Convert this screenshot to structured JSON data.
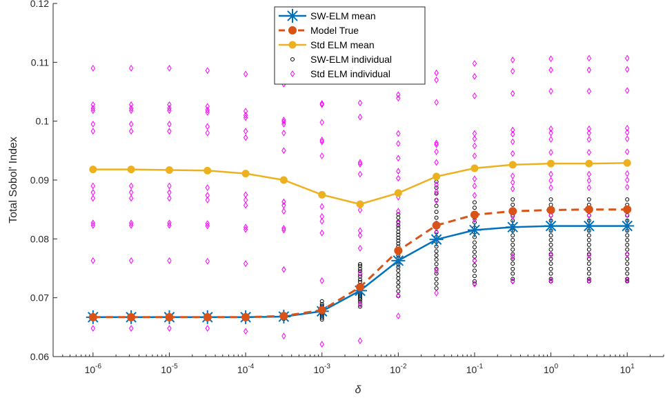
{
  "chart_data": {
    "type": "line",
    "title": "",
    "xlabel": "δ",
    "ylabel": "Total Sobol' Index",
    "xscale": "log",
    "xlim": [
      3e-07,
      30
    ],
    "ylim": [
      0.06,
      0.12
    ],
    "x_tick_exponents": [
      -6,
      -5,
      -4,
      -3,
      -2,
      -1,
      0,
      1
    ],
    "y_ticks": [
      0.06,
      0.07,
      0.08,
      0.09,
      0.1,
      0.11,
      0.12
    ],
    "y_tick_labels": [
      "0.06",
      "0.07",
      "0.08",
      "0.09",
      "0.1",
      "0.11",
      "0.12"
    ],
    "grid": false,
    "legend_position": "top-center",
    "x": [
      1e-06,
      3.16e-06,
      1e-05,
      3.16e-05,
      0.0001,
      0.000316,
      0.001,
      0.00316,
      0.01,
      0.0316,
      0.1,
      0.316,
      1,
      3.16,
      10
    ],
    "series": [
      {
        "name": "SW-ELM mean",
        "color": "#0072bd",
        "marker": "asterisk",
        "values": [
          0.0667,
          0.0667,
          0.0667,
          0.0667,
          0.0667,
          0.0668,
          0.0677,
          0.0712,
          0.0763,
          0.0799,
          0.0815,
          0.082,
          0.0822,
          0.0822,
          0.0822
        ]
      },
      {
        "name": "Model True",
        "color": "#d95319",
        "marker": "circle",
        "dashed": true,
        "values": [
          0.0667,
          0.0667,
          0.0667,
          0.0667,
          0.0667,
          0.0669,
          0.0679,
          0.0718,
          0.078,
          0.0823,
          0.0841,
          0.0847,
          0.0849,
          0.085,
          0.085
        ]
      },
      {
        "name": "Std ELM mean",
        "color": "#edb120",
        "marker": "circle",
        "values": [
          0.0918,
          0.0918,
          0.0917,
          0.0916,
          0.0911,
          0.09,
          0.0875,
          0.0859,
          0.0878,
          0.0906,
          0.092,
          0.0926,
          0.0928,
          0.0928,
          0.0929
        ]
      },
      {
        "name": "SW-ELM individual",
        "color": "#000000",
        "marker": "small-circle",
        "scatter": true,
        "points": [
          [
            [
              0.0667,
              0.0666,
              0.0668,
              0.0665,
              0.0669,
              0.0667,
              0.0666,
              0.0668
            ]
          ],
          [
            [
              0.0667,
              0.0666,
              0.0668,
              0.0665,
              0.0669,
              0.0667,
              0.0666,
              0.0668
            ]
          ],
          [
            [
              0.0667,
              0.0666,
              0.0668,
              0.0665,
              0.0669,
              0.0667,
              0.0666,
              0.0668
            ]
          ],
          [
            [
              0.0667,
              0.0666,
              0.0668,
              0.0665,
              0.0669,
              0.0667,
              0.0666,
              0.0668
            ]
          ],
          [
            [
              0.0667,
              0.0666,
              0.0668,
              0.0665,
              0.0669,
              0.0667,
              0.0666,
              0.0668
            ]
          ],
          [
            [
              0.0664,
              0.0666,
              0.0667,
              0.0668,
              0.0669,
              0.067,
              0.0671,
              0.0665,
              0.0672,
              0.0666
            ]
          ],
          [
            [
              0.0663,
              0.0666,
              0.0669,
              0.0672,
              0.0674,
              0.0676,
              0.0678,
              0.068,
              0.0683,
              0.0686,
              0.0689,
              0.0694
            ]
          ],
          [
            [
              0.0685,
              0.0689,
              0.0693,
              0.0697,
              0.07,
              0.0703,
              0.0706,
              0.0709,
              0.0712,
              0.0716,
              0.0719,
              0.0722,
              0.0727,
              0.0731,
              0.0736,
              0.074,
              0.0745,
              0.0749,
              0.0754,
              0.0757
            ]
          ],
          [
            [
              0.0703,
              0.0711,
              0.0719,
              0.0726,
              0.0733,
              0.0739,
              0.0746,
              0.0752,
              0.0757,
              0.0762,
              0.0767,
              0.0772,
              0.0777,
              0.0782,
              0.0787,
              0.0792,
              0.0797,
              0.0802,
              0.0807,
              0.0812,
              0.0818,
              0.0823,
              0.0829,
              0.0836,
              0.0842
            ]
          ],
          [
            [
              0.0716,
              0.0724,
              0.0732,
              0.0741,
              0.0749,
              0.0757,
              0.0765,
              0.0772,
              0.0779,
              0.0787,
              0.0795,
              0.0803,
              0.0811,
              0.0819,
              0.0827,
              0.0836,
              0.0846,
              0.0856,
              0.0866,
              0.0877,
              0.0887,
              0.0897
            ]
          ],
          [
            [
              0.0724,
              0.0728,
              0.0737,
              0.0746,
              0.0755,
              0.0763,
              0.077,
              0.0778,
              0.0786,
              0.0794,
              0.0803,
              0.0811,
              0.0819,
              0.0828,
              0.0836,
              0.0844,
              0.0853,
              0.0862,
              0.092
            ]
          ],
          [
            [
              0.0728,
              0.0732,
              0.0741,
              0.0749,
              0.0758,
              0.0766,
              0.0774,
              0.0782,
              0.079,
              0.0798,
              0.0806,
              0.0814,
              0.0822,
              0.0831,
              0.084,
              0.0849,
              0.0858,
              0.0867,
              0.0926
            ]
          ],
          [
            [
              0.0728,
              0.0732,
              0.0741,
              0.0749,
              0.0758,
              0.0766,
              0.0774,
              0.0782,
              0.079,
              0.0798,
              0.0806,
              0.0814,
              0.0822,
              0.0831,
              0.084,
              0.0849,
              0.0858,
              0.0867,
              0.0929
            ]
          ],
          [
            [
              0.0728,
              0.0732,
              0.0741,
              0.0749,
              0.0758,
              0.0766,
              0.0774,
              0.0782,
              0.079,
              0.0798,
              0.0806,
              0.0814,
              0.0822,
              0.0831,
              0.084,
              0.0849,
              0.0858,
              0.0867,
              0.093
            ]
          ],
          [
            [
              0.0728,
              0.0732,
              0.0741,
              0.0749,
              0.0758,
              0.0766,
              0.0774,
              0.0782,
              0.079,
              0.0798,
              0.0806,
              0.0814,
              0.0822,
              0.0831,
              0.084,
              0.0849,
              0.0858,
              0.0867,
              0.0932
            ]
          ]
        ]
      },
      {
        "name": "Std ELM individual",
        "color": "#ff00ff",
        "marker": "diamond",
        "scatter": true,
        "points": [
          [
            [
              0.0648,
              0.0763,
              0.0823,
              0.0827,
              0.0869,
              0.0879,
              0.089,
              0.0983,
              0.0995,
              0.1018,
              0.1022,
              0.1028,
              0.109
            ]
          ],
          [
            [
              0.0648,
              0.0763,
              0.0823,
              0.0827,
              0.0869,
              0.0879,
              0.089,
              0.0983,
              0.0995,
              0.1018,
              0.1022,
              0.1028,
              0.109
            ]
          ],
          [
            [
              0.0648,
              0.0763,
              0.0823,
              0.0827,
              0.0869,
              0.0879,
              0.089,
              0.0983,
              0.0995,
              0.1018,
              0.1022,
              0.1028,
              0.109
            ]
          ],
          [
            [
              0.0648,
              0.0762,
              0.0822,
              0.0826,
              0.0866,
              0.0874,
              0.0887,
              0.098,
              0.0991,
              0.1015,
              0.1019,
              0.1025,
              0.1086
            ]
          ],
          [
            [
              0.0643,
              0.0758,
              0.0816,
              0.082,
              0.0857,
              0.0866,
              0.0875,
              0.0972,
              0.0983,
              0.1006,
              0.101,
              0.1017,
              0.108
            ]
          ],
          [
            [
              0.0635,
              0.0748,
              0.0815,
              0.0818,
              0.0847,
              0.0857,
              0.0863,
              0.095,
              0.098,
              0.0995,
              0.0999,
              0.1002,
              0.1063
            ]
          ],
          [
            [
              0.0621,
              0.0729,
              0.081,
              0.083,
              0.0838,
              0.0855,
              0.0941,
              0.0965,
              0.0968,
              0.0998,
              0.1028,
              0.103
            ]
          ],
          [
            [
              0.0627,
              0.0689,
              0.0741,
              0.0784,
              0.0806,
              0.0814,
              0.0849,
              0.091,
              0.0927,
              0.093,
              0.1007,
              0.1031
            ]
          ],
          [
            [
              0.0669,
              0.0704,
              0.0782,
              0.0827,
              0.0847,
              0.0871,
              0.0903,
              0.0915,
              0.0937,
              0.0962,
              0.0979,
              0.1039,
              0.1045
            ]
          ],
          [
            [
              0.0708,
              0.0746,
              0.0812,
              0.0865,
              0.088,
              0.0892,
              0.093,
              0.0948,
              0.096,
              0.0963,
              0.1032,
              0.107,
              0.1082
            ]
          ],
          [
            [
              0.0723,
              0.0763,
              0.0833,
              0.0874,
              0.089,
              0.0902,
              0.0941,
              0.0958,
              0.097,
              0.0979,
              0.1043,
              0.1076,
              0.1098
            ]
          ],
          [
            [
              0.0728,
              0.077,
              0.0838,
              0.0885,
              0.0896,
              0.0907,
              0.0945,
              0.0965,
              0.0978,
              0.0985,
              0.1047,
              0.1085,
              0.1104
            ]
          ],
          [
            [
              0.0729,
              0.0772,
              0.084,
              0.0887,
              0.0899,
              0.091,
              0.0947,
              0.0969,
              0.098,
              0.0987,
              0.1051,
              0.1087,
              0.1106
            ]
          ],
          [
            [
              0.0729,
              0.0772,
              0.084,
              0.0887,
              0.0899,
              0.091,
              0.0947,
              0.0969,
              0.098,
              0.0987,
              0.1051,
              0.1087,
              0.1107
            ]
          ],
          [
            [
              0.073,
              0.0773,
              0.0841,
              0.0888,
              0.09,
              0.0911,
              0.0948,
              0.097,
              0.0981,
              0.0988,
              0.1052,
              0.1088,
              0.1107
            ]
          ]
        ]
      }
    ]
  }
}
